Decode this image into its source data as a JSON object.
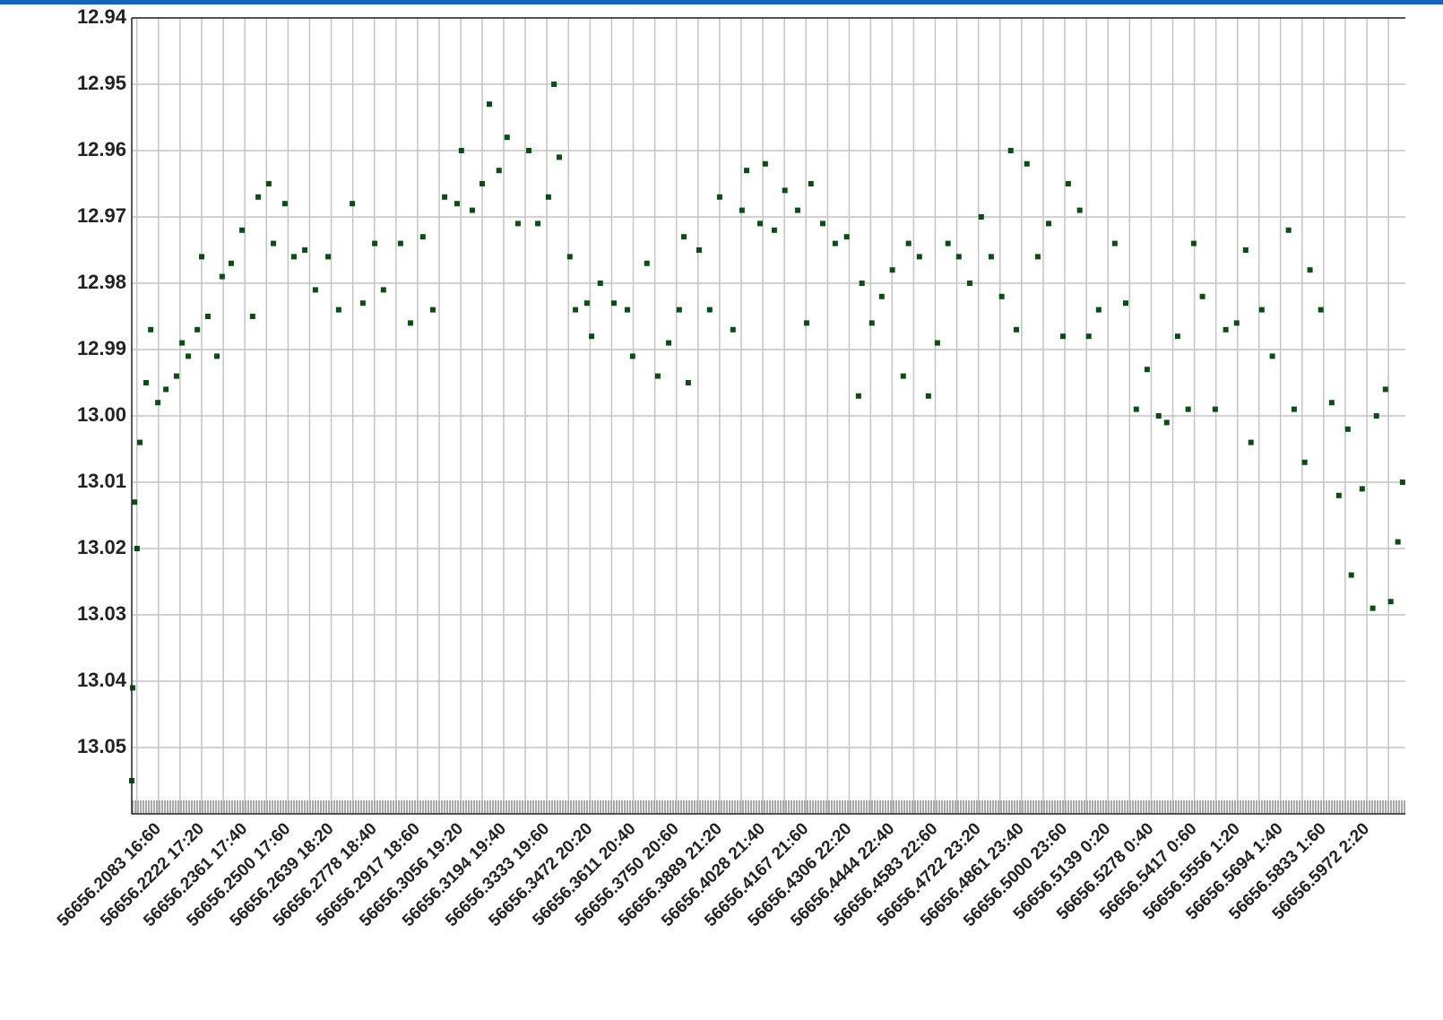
{
  "chart_data": {
    "type": "scatter",
    "color": "#0b4d12",
    "grid": true,
    "xlim": [
      56656.1997,
      56656.6096
    ],
    "ylim": [
      13.06,
      12.94
    ],
    "yticks": [
      12.94,
      12.95,
      12.96,
      12.97,
      12.98,
      12.99,
      {
        "value": 13.0,
        "label": "13.00"
      },
      13.01,
      13.02,
      13.03,
      13.04,
      13.05
    ],
    "xticks": [
      {
        "value": 56656.2083,
        "label": "56656.2083 16:60"
      },
      {
        "value": 56656.2222,
        "label": "56656.2222 17:20"
      },
      {
        "value": 56656.2361,
        "label": "56656.2361 17:40"
      },
      {
        "value": 56656.25,
        "label": "56656.2500 17:60"
      },
      {
        "value": 56656.2639,
        "label": "56656.2639 18:20"
      },
      {
        "value": 56656.2778,
        "label": "56656.2778 18:40"
      },
      {
        "value": 56656.2917,
        "label": "56656.2917 18:60"
      },
      {
        "value": 56656.3056,
        "label": "56656.3056 19:20"
      },
      {
        "value": 56656.3194,
        "label": "56656.3194 19:40"
      },
      {
        "value": 56656.3333,
        "label": "56656.3333 19:60"
      },
      {
        "value": 56656.3472,
        "label": "56656.3472 20:20"
      },
      {
        "value": 56656.3611,
        "label": "56656.3611 20:40"
      },
      {
        "value": 56656.375,
        "label": "56656.3750 20:60"
      },
      {
        "value": 56656.3889,
        "label": "56656.3889 21:20"
      },
      {
        "value": 56656.4028,
        "label": "56656.4028 21:40"
      },
      {
        "value": 56656.4167,
        "label": "56656.4167 21:60"
      },
      {
        "value": 56656.4306,
        "label": "56656.4306 22:20"
      },
      {
        "value": 56656.4444,
        "label": "56656.4444 22:40"
      },
      {
        "value": 56656.4583,
        "label": "56656.4583 22:60"
      },
      {
        "value": 56656.4722,
        "label": "56656.4722 23:20"
      },
      {
        "value": 56656.4861,
        "label": "56656.4861 23:40"
      },
      {
        "value": 56656.5,
        "label": "56656.5000 23:60"
      },
      {
        "value": 56656.5139,
        "label": "56656.5139 0:20"
      },
      {
        "value": 56656.5278,
        "label": "56656.5278 0:40"
      },
      {
        "value": 56656.5417,
        "label": "56656.5417 0:60"
      },
      {
        "value": 56656.5556,
        "label": "56656.5556 1:20"
      },
      {
        "value": 56656.5694,
        "label": "56656.5694 1:40"
      },
      {
        "value": 56656.5833,
        "label": "56656.5833 1:60"
      },
      {
        "value": 56656.5972,
        "label": "56656.5972 2:20"
      }
    ],
    "x": [
      56656.1997,
      56656.2,
      56656.2006,
      56656.2014,
      56656.2023,
      56656.2043,
      56656.2058,
      56656.2081,
      56656.2107,
      56656.2141,
      56656.2159,
      56656.2179,
      56656.2208,
      56656.2222,
      56656.2242,
      56656.2271,
      56656.2288,
      56656.2317,
      56656.2352,
      56656.2386,
      56656.2404,
      56656.2438,
      56656.2453,
      56656.249,
      56656.2519,
      56656.2554,
      56656.2588,
      56656.2629,
      56656.2663,
      56656.2707,
      56656.2741,
      56656.2779,
      56656.2807,
      56656.2862,
      56656.2894,
      56656.2934,
      56656.2966,
      56656.3004,
      56656.3044,
      56656.3058,
      56656.3093,
      56656.3125,
      56656.3148,
      56656.3179,
      56656.3205,
      56656.324,
      56656.3275,
      56656.3304,
      56656.3338,
      56656.3356,
      56656.3373,
      56656.3407,
      56656.3425,
      56656.3462,
      56656.3477,
      56656.3505,
      56656.3549,
      56656.3592,
      56656.3609,
      56656.3655,
      56656.369,
      56656.3725,
      56656.3759,
      56656.3774,
      56656.3788,
      56656.3823,
      56656.3857,
      56656.3889,
      56656.3932,
      56656.3961,
      56656.3976,
      56656.4019,
      56656.4036,
      56656.4065,
      56656.4099,
      56656.414,
      56656.4169,
      56656.4183,
      56656.4221,
      56656.4261,
      56656.4298,
      56656.4336,
      56656.4347,
      56656.4379,
      56656.4411,
      56656.4445,
      56656.448,
      56656.4497,
      56656.4532,
      56656.4561,
      56656.459,
      56656.4624,
      56656.4659,
      56656.4694,
      56656.4731,
      56656.4763,
      56656.4797,
      56656.4826,
      56656.4844,
      56656.4878,
      56656.4913,
      56656.4948,
      56656.4994,
      56656.5011,
      56656.5048,
      56656.5077,
      56656.5109,
      56656.5161,
      56656.5196,
      56656.523,
      56656.5265,
      56656.5302,
      56656.5328,
      56656.5363,
      56656.5397,
      56656.5415,
      56656.5443,
      56656.5484,
      56656.5518,
      56656.5553,
      56656.5582,
      56656.5599,
      56656.5634,
      56656.5668,
      56656.572,
      56656.5738,
      56656.5772,
      56656.5789,
      56656.5824,
      56656.5859,
      56656.5882,
      56656.5911,
      56656.5922,
      56656.5957,
      56656.5991,
      56656.6003,
      56656.6032,
      56656.6049,
      56656.6072,
      56656.6087
    ],
    "values": [
      13.055,
      13.041,
      13.013,
      13.02,
      13.004,
      12.995,
      12.987,
      12.998,
      12.996,
      12.994,
      12.989,
      12.991,
      12.987,
      12.976,
      12.985,
      12.991,
      12.979,
      12.977,
      12.972,
      12.985,
      12.967,
      12.965,
      12.974,
      12.968,
      12.976,
      12.975,
      12.981,
      12.976,
      12.984,
      12.968,
      12.983,
      12.974,
      12.981,
      12.974,
      12.986,
      12.973,
      12.984,
      12.967,
      12.968,
      12.96,
      12.969,
      12.965,
      12.953,
      12.963,
      12.958,
      12.971,
      12.96,
      12.971,
      12.967,
      12.95,
      12.961,
      12.976,
      12.984,
      12.983,
      12.988,
      12.98,
      12.983,
      12.984,
      12.991,
      12.977,
      12.994,
      12.989,
      12.984,
      12.973,
      12.995,
      12.975,
      12.984,
      12.967,
      12.987,
      12.969,
      12.963,
      12.971,
      12.962,
      12.972,
      12.966,
      12.969,
      12.986,
      12.965,
      12.971,
      12.974,
      12.973,
      12.997,
      12.98,
      12.986,
      12.982,
      12.978,
      12.994,
      12.974,
      12.976,
      12.997,
      12.989,
      12.974,
      12.976,
      12.98,
      12.97,
      12.976,
      12.982,
      12.96,
      12.987,
      12.962,
      12.976,
      12.971,
      12.988,
      12.965,
      12.969,
      12.988,
      12.984,
      12.974,
      12.983,
      12.999,
      12.993,
      13.0,
      13.001,
      12.988,
      12.999,
      12.974,
      12.982,
      12.999,
      12.987,
      12.986,
      12.975,
      13.004,
      12.984,
      12.991,
      12.972,
      12.999,
      13.007,
      12.978,
      12.984,
      12.998,
      13.012,
      13.002,
      13.024,
      13.011,
      13.029,
      13.0,
      12.996,
      13.028,
      13.019,
      13.01
    ]
  }
}
